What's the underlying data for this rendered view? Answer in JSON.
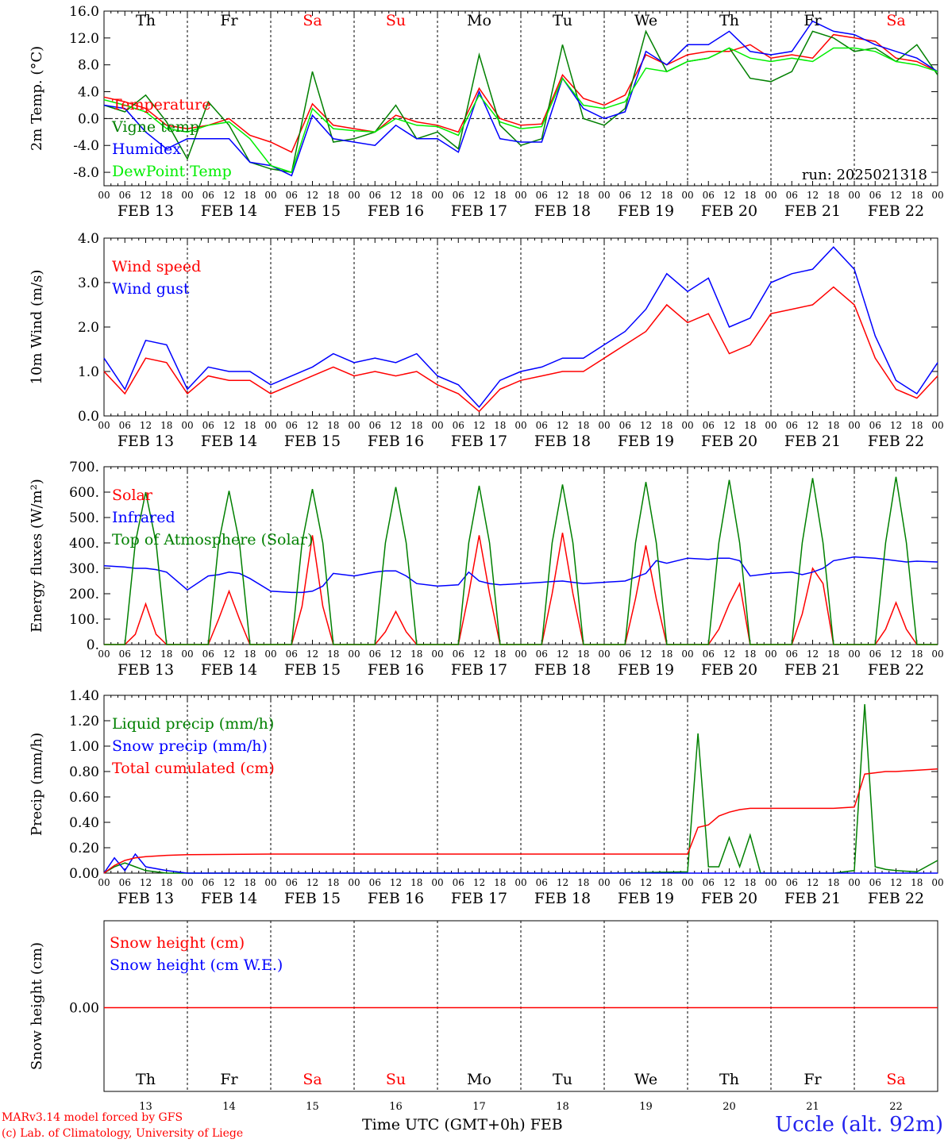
{
  "chart_data": [
    {
      "type": "line",
      "ylabel": "2m Temp. (°C)",
      "ylim": [
        -10,
        16
      ],
      "yticks": [
        "-8.0",
        "-4.0",
        "0.0",
        "4.0",
        "8.0",
        "12.0",
        "16.0"
      ],
      "run_label": "run: 2025021318",
      "x_hours": [
        0,
        6,
        12,
        18,
        24,
        30,
        36,
        42,
        48,
        54,
        60,
        66,
        72,
        78,
        84,
        90,
        96,
        102,
        108,
        114,
        120,
        126,
        132,
        138,
        144,
        150,
        156,
        162,
        168,
        174,
        180,
        186,
        192,
        198,
        204,
        210,
        216,
        222,
        228,
        234,
        240
      ],
      "series": [
        {
          "name": "Temperature",
          "color": "#ff0000",
          "values": [
            3.2,
            2.5,
            1.5,
            -1.0,
            -1.5,
            -1.0,
            0.0,
            -2.5,
            -3.5,
            -5.0,
            2.2,
            -1.0,
            -1.5,
            -2.0,
            0.5,
            -0.5,
            -1.0,
            -2.0,
            4.5,
            0.0,
            -1.0,
            -0.8,
            6.5,
            3.0,
            2.0,
            3.5,
            9.5,
            8.0,
            9.5,
            10.0,
            10.0,
            11.0,
            9.0,
            9.5,
            9.0,
            12.5,
            12.0,
            11.5,
            9.0,
            8.5,
            7.0
          ]
        },
        {
          "name": "Vigne temp",
          "color": "#008000",
          "values": [
            2.0,
            1.0,
            3.5,
            -0.5,
            -6.0,
            2.5,
            -1.0,
            -6.5,
            -7.5,
            -8.0,
            7.0,
            -3.5,
            -3.0,
            -2.0,
            2.0,
            -3.0,
            -2.0,
            -4.5,
            9.5,
            -1.0,
            -4.0,
            -3.0,
            11.0,
            0.0,
            -1.0,
            1.5,
            13.0,
            7.0,
            8.5,
            9.0,
            10.5,
            6.0,
            5.5,
            7.0,
            13.0,
            12.0,
            10.0,
            10.5,
            8.5,
            11.0,
            6.5
          ]
        },
        {
          "name": "Humidex",
          "color": "#0000ff",
          "values": [
            2.0,
            1.5,
            -2.0,
            -4.5,
            -3.0,
            -3.0,
            -3.0,
            -6.5,
            -7.0,
            -8.5,
            0.5,
            -3.0,
            -3.5,
            -4.0,
            -1.0,
            -3.0,
            -3.0,
            -5.0,
            4.0,
            -3.0,
            -3.5,
            -3.5,
            6.0,
            1.5,
            0.0,
            1.0,
            10.0,
            8.0,
            11.0,
            11.0,
            13.0,
            10.0,
            9.5,
            10.0,
            14.5,
            13.0,
            12.5,
            11.0,
            10.0,
            9.0,
            7.0
          ]
        },
        {
          "name": "DewPoint Temp",
          "color": "#00ee00",
          "values": [
            2.8,
            2.0,
            1.0,
            -1.5,
            -2.0,
            -1.0,
            -0.5,
            -3.0,
            -7.0,
            -8.0,
            1.5,
            -1.5,
            -1.8,
            -2.0,
            0.0,
            -1.0,
            -1.2,
            -2.5,
            3.5,
            -0.5,
            -1.5,
            -1.2,
            6.0,
            2.0,
            1.5,
            2.5,
            7.5,
            7.0,
            8.5,
            9.0,
            10.5,
            9.0,
            8.5,
            9.0,
            8.5,
            10.5,
            10.5,
            10.0,
            8.5,
            8.0,
            7.0
          ]
        }
      ]
    },
    {
      "type": "line",
      "ylabel": "10m Wind (m/s)",
      "ylim": [
        0,
        4
      ],
      "yticks": [
        "0.0",
        "1.0",
        "2.0",
        "3.0",
        "4.0"
      ],
      "x_hours": [
        0,
        6,
        12,
        18,
        24,
        30,
        36,
        42,
        48,
        54,
        60,
        66,
        72,
        78,
        84,
        90,
        96,
        102,
        108,
        114,
        120,
        126,
        132,
        138,
        144,
        150,
        156,
        162,
        168,
        174,
        180,
        186,
        192,
        198,
        204,
        210,
        216,
        222,
        228,
        234,
        240
      ],
      "series": [
        {
          "name": "Wind speed",
          "color": "#ff0000",
          "values": [
            1.0,
            0.5,
            1.3,
            1.2,
            0.5,
            0.9,
            0.8,
            0.8,
            0.5,
            0.7,
            0.9,
            1.1,
            0.9,
            1.0,
            0.9,
            1.0,
            0.7,
            0.5,
            0.1,
            0.6,
            0.8,
            0.9,
            1.0,
            1.0,
            1.3,
            1.6,
            1.9,
            2.5,
            2.1,
            2.3,
            1.4,
            1.6,
            2.3,
            2.4,
            2.5,
            2.9,
            2.5,
            1.3,
            0.6,
            0.4,
            0.9
          ]
        },
        {
          "name": "Wind gust",
          "color": "#0000ff",
          "values": [
            1.3,
            0.6,
            1.7,
            1.6,
            0.6,
            1.1,
            1.0,
            1.0,
            0.7,
            0.9,
            1.1,
            1.4,
            1.2,
            1.3,
            1.2,
            1.4,
            0.9,
            0.7,
            0.2,
            0.8,
            1.0,
            1.1,
            1.3,
            1.3,
            1.6,
            1.9,
            2.4,
            3.2,
            2.8,
            3.1,
            2.0,
            2.2,
            3.0,
            3.2,
            3.3,
            3.8,
            3.3,
            1.8,
            0.8,
            0.5,
            1.2
          ]
        }
      ]
    },
    {
      "type": "line",
      "ylabel": "Energy fluxes (W/m²)",
      "ylim": [
        0,
        700
      ],
      "yticks": [
        "0.",
        "100.",
        "200.",
        "300.",
        "400.",
        "500.",
        "600.",
        "700."
      ],
      "x_hours": [
        0,
        6,
        9,
        12,
        15,
        18,
        24,
        30,
        33,
        36,
        39,
        42,
        48,
        54,
        57,
        60,
        63,
        66,
        72,
        78,
        81,
        84,
        87,
        90,
        96,
        102,
        105,
        108,
        111,
        114,
        120,
        126,
        129,
        132,
        135,
        138,
        144,
        150,
        153,
        156,
        159,
        162,
        168,
        174,
        177,
        180,
        183,
        186,
        192,
        198,
        201,
        204,
        207,
        210,
        216,
        222,
        225,
        228,
        231,
        234,
        240
      ],
      "series": [
        {
          "name": "Solar",
          "color": "#ff0000",
          "values": [
            0,
            0,
            40,
            160,
            40,
            0,
            0,
            0,
            100,
            210,
            100,
            0,
            0,
            0,
            150,
            430,
            150,
            0,
            0,
            0,
            50,
            130,
            50,
            0,
            0,
            0,
            200,
            430,
            200,
            0,
            0,
            0,
            200,
            440,
            200,
            0,
            0,
            0,
            180,
            390,
            180,
            0,
            0,
            0,
            60,
            160,
            240,
            0,
            0,
            0,
            120,
            300,
            240,
            0,
            0,
            0,
            60,
            165,
            60,
            0,
            0
          ]
        },
        {
          "name": "Infrared",
          "color": "#0000ff",
          "values": [
            310,
            305,
            300,
            300,
            295,
            285,
            215,
            270,
            275,
            285,
            280,
            260,
            210,
            205,
            205,
            210,
            230,
            280,
            270,
            285,
            290,
            290,
            270,
            240,
            230,
            235,
            285,
            250,
            240,
            235,
            240,
            245,
            248,
            250,
            245,
            240,
            245,
            250,
            265,
            280,
            330,
            320,
            340,
            335,
            340,
            340,
            330,
            270,
            280,
            285,
            275,
            285,
            300,
            330,
            345,
            340,
            335,
            330,
            325,
            328,
            325
          ]
        },
        {
          "name": "Top of Atmosphere (Solar)",
          "color": "#008000",
          "values": [
            0,
            0,
            400,
            600,
            400,
            0,
            0,
            0,
            400,
            605,
            400,
            0,
            0,
            0,
            400,
            612,
            400,
            0,
            0,
            0,
            400,
            620,
            400,
            0,
            0,
            0,
            400,
            625,
            400,
            0,
            0,
            0,
            400,
            630,
            400,
            0,
            0,
            0,
            400,
            640,
            400,
            0,
            0,
            0,
            400,
            648,
            400,
            0,
            0,
            0,
            400,
            655,
            400,
            0,
            0,
            0,
            400,
            660,
            400,
            0,
            0
          ]
        }
      ]
    },
    {
      "type": "line",
      "ylabel": "Precip (mm/h)",
      "ylim": [
        0,
        1.4
      ],
      "yticks": [
        "0.00",
        "0.20",
        "0.40",
        "0.60",
        "0.80",
        "1.00",
        "1.20",
        "1.40"
      ],
      "x_hours": [
        0,
        3,
        6,
        9,
        12,
        18,
        24,
        48,
        96,
        144,
        168,
        171,
        174,
        177,
        180,
        183,
        186,
        189,
        192,
        198,
        204,
        210,
        216,
        219,
        222,
        225,
        228,
        234,
        240
      ],
      "series": [
        {
          "name": "Liquid precip (mm/h)",
          "color": "#008000",
          "values": [
            0,
            0.05,
            0.08,
            0.05,
            0.02,
            0,
            0,
            0,
            0,
            0,
            0.01,
            1.1,
            0.05,
            0.05,
            0.28,
            0.05,
            0.3,
            0.0,
            0,
            0,
            0,
            0,
            0.02,
            1.33,
            0.05,
            0.03,
            0.02,
            0.01,
            0.1
          ]
        },
        {
          "name": "Snow precip (mm/h)",
          "color": "#0000ff",
          "values": [
            0,
            0.12,
            0.02,
            0.15,
            0.05,
            0.02,
            0,
            0,
            0,
            0,
            0,
            0,
            0,
            0,
            0,
            0,
            0,
            0,
            0,
            0,
            0,
            0,
            0,
            0,
            0,
            0,
            0,
            0,
            0
          ]
        },
        {
          "name": "Total cumulated (cm)",
          "color": "#ff0000",
          "values": [
            0,
            0.06,
            0.1,
            0.12,
            0.13,
            0.14,
            0.145,
            0.15,
            0.15,
            0.15,
            0.15,
            0.36,
            0.38,
            0.45,
            0.48,
            0.5,
            0.51,
            0.51,
            0.51,
            0.51,
            0.51,
            0.51,
            0.52,
            0.78,
            0.79,
            0.8,
            0.8,
            0.81,
            0.82
          ]
        }
      ]
    },
    {
      "type": "line",
      "ylabel": "Snow height (cm)",
      "yticks": [
        "0.00"
      ],
      "series": [
        {
          "name": "Snow height (cm)",
          "color": "#ff0000"
        },
        {
          "name": "Snow height (cm W.E.)",
          "color": "#0000ff"
        }
      ]
    }
  ],
  "weekdays": [
    {
      "label": "Th",
      "color": "#000000"
    },
    {
      "label": "Fr",
      "color": "#000000"
    },
    {
      "label": "Sa",
      "color": "#ff0000"
    },
    {
      "label": "Su",
      "color": "#ff0000"
    },
    {
      "label": "Mo",
      "color": "#000000"
    },
    {
      "label": "Tu",
      "color": "#000000"
    },
    {
      "label": "We",
      "color": "#000000"
    },
    {
      "label": "Th",
      "color": "#000000"
    },
    {
      "label": "Fr",
      "color": "#000000"
    },
    {
      "label": "Sa",
      "color": "#ff0000"
    }
  ],
  "hour_ticks": [
    "00",
    "06",
    "12",
    "18"
  ],
  "date_labels": [
    "FEB 13",
    "FEB 14",
    "FEB 15",
    "FEB 16",
    "FEB 17",
    "FEB 18",
    "FEB 19",
    "FEB 20",
    "FEB 21",
    "FEB 22"
  ],
  "day_numbers": [
    "13",
    "14",
    "15",
    "16",
    "17",
    "18",
    "19",
    "20",
    "21",
    "22"
  ],
  "footer": {
    "model": "MARv3.14 model forced by GFS",
    "lab": "(c) Lab. of Climatology, University of Liege",
    "xlabel": "Time UTC (GMT+0h) FEB",
    "station": "Uccle (alt. 92m)"
  }
}
